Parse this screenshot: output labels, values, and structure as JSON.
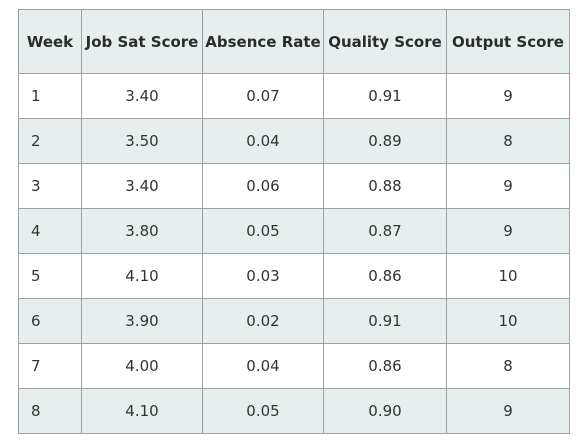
{
  "chart_data": {
    "type": "table",
    "columns": [
      "Week",
      "Job Sat Score",
      "Absence Rate",
      "Quality Score",
      "Output Score"
    ],
    "rows": [
      [
        "1",
        "3.40",
        "0.07",
        "0.91",
        "9"
      ],
      [
        "2",
        "3.50",
        "0.04",
        "0.89",
        "8"
      ],
      [
        "3",
        "3.40",
        "0.06",
        "0.88",
        "9"
      ],
      [
        "4",
        "3.80",
        "0.05",
        "0.87",
        "9"
      ],
      [
        "5",
        "4.10",
        "0.03",
        "0.86",
        "10"
      ],
      [
        "6",
        "3.90",
        "0.02",
        "0.91",
        "10"
      ],
      [
        "7",
        "4.00",
        "0.04",
        "0.86",
        "8"
      ],
      [
        "8",
        "4.10",
        "0.05",
        "0.90",
        "9"
      ]
    ]
  },
  "colors": {
    "header_background": "#e6eeee",
    "stripe_background": "#e6eeee",
    "border": "#9aa3a3"
  }
}
